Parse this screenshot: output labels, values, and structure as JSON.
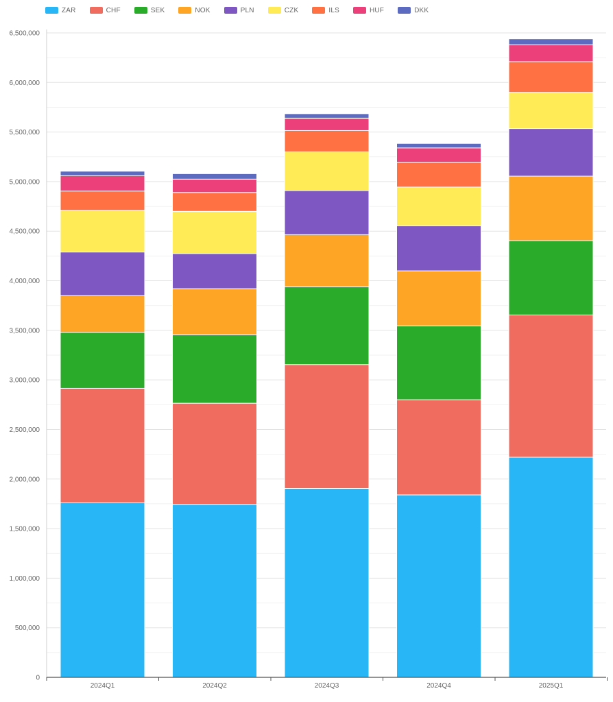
{
  "chart_data": {
    "type": "bar",
    "stacked": true,
    "categories": [
      "2024Q1",
      "2024Q2",
      "2024Q3",
      "2024Q4",
      "2025Q1"
    ],
    "series": [
      {
        "name": "ZAR",
        "color": "#29b6f6",
        "values": [
          1760000,
          1745000,
          1905000,
          1840000,
          2220000
        ]
      },
      {
        "name": "CHF",
        "color": "#ef6c5f",
        "values": [
          1155000,
          1020000,
          1250000,
          960000,
          1435000
        ]
      },
      {
        "name": "SEK",
        "color": "#2aab2a",
        "values": [
          565000,
          690000,
          785000,
          745000,
          750000
        ]
      },
      {
        "name": "NOK",
        "color": "#ffa525",
        "values": [
          370000,
          465000,
          525000,
          555000,
          650000
        ]
      },
      {
        "name": "PLN",
        "color": "#7e57c2",
        "values": [
          440000,
          355000,
          445000,
          455000,
          480000
        ]
      },
      {
        "name": "CZK",
        "color": "#ffeb55",
        "values": [
          420000,
          425000,
          390000,
          390000,
          365000
        ]
      },
      {
        "name": "ILS",
        "color": "#ff7043",
        "values": [
          195000,
          190000,
          215000,
          250000,
          310000
        ]
      },
      {
        "name": "HUF",
        "color": "#ec407a",
        "values": [
          155000,
          135000,
          125000,
          145000,
          170000
        ]
      },
      {
        "name": "DKK",
        "color": "#5c6bc0",
        "values": [
          45000,
          55000,
          45000,
          45000,
          60000
        ]
      }
    ],
    "y_ticks": [
      "0",
      "500,000",
      "1,000,000",
      "1,500,000",
      "2,000,000",
      "2,500,000",
      "3,000,000",
      "3,500,000",
      "4,000,000",
      "4,500,000",
      "5,000,000",
      "5,500,000",
      "6,000,000",
      "6,500,000"
    ],
    "ylim": [
      0,
      6500000
    ],
    "title": "",
    "xlabel": "",
    "ylabel": "",
    "grid": true,
    "legend_position": "top-left"
  }
}
